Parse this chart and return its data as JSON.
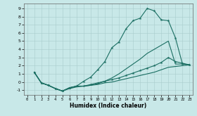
{
  "bg_color": "#c8e8e8",
  "grid_color": "#a8cccc",
  "line_color": "#1a6e62",
  "xlabel": "Humidex (Indice chaleur)",
  "xlim": [
    -0.5,
    23.5
  ],
  "ylim": [
    -1.6,
    9.6
  ],
  "xticks": [
    0,
    1,
    2,
    3,
    4,
    5,
    6,
    7,
    8,
    9,
    10,
    11,
    12,
    13,
    14,
    15,
    16,
    17,
    18,
    19,
    20,
    21,
    22,
    23
  ],
  "yticks": [
    -1,
    0,
    1,
    2,
    3,
    4,
    5,
    6,
    7,
    8,
    9
  ],
  "line1": {
    "x": [
      1,
      2,
      3,
      4,
      5,
      6,
      7,
      8,
      9,
      10,
      11,
      12,
      13,
      14,
      15,
      16,
      17,
      18,
      19,
      20,
      21,
      22,
      23
    ],
    "y": [
      1.2,
      -0.1,
      -0.4,
      -0.8,
      -1.1,
      -0.7,
      -0.5,
      0.1,
      0.6,
      1.5,
      2.5,
      4.2,
      4.9,
      6.5,
      7.5,
      7.8,
      9.0,
      8.7,
      7.6,
      7.5,
      5.4,
      2.2,
      2.1
    ],
    "has_markers": true
  },
  "line2": {
    "x": [
      1,
      2,
      3,
      4,
      5,
      6,
      7,
      8,
      9,
      10,
      11,
      12,
      13,
      14,
      15,
      16,
      17,
      18,
      19,
      20,
      21,
      22,
      23
    ],
    "y": [
      1.2,
      -0.1,
      -0.4,
      -0.8,
      -1.1,
      -0.8,
      -0.6,
      -0.5,
      -0.4,
      -0.2,
      0.1,
      0.5,
      1.0,
      1.6,
      2.2,
      2.8,
      3.5,
      4.0,
      4.5,
      5.0,
      2.2,
      2.2,
      2.1
    ],
    "has_markers": false
  },
  "line3": {
    "x": [
      1,
      2,
      3,
      4,
      5,
      6,
      7,
      8,
      9,
      10,
      11,
      12,
      13,
      14,
      15,
      16,
      17,
      18,
      19,
      20,
      21,
      22,
      23
    ],
    "y": [
      1.2,
      -0.1,
      -0.4,
      -0.8,
      -1.1,
      -0.7,
      -0.5,
      -0.5,
      -0.3,
      -0.1,
      0.1,
      0.3,
      0.5,
      0.8,
      1.1,
      1.4,
      1.7,
      2.0,
      2.4,
      3.0,
      2.5,
      2.3,
      2.1
    ],
    "has_markers": true
  },
  "line4": {
    "x": [
      1,
      2,
      3,
      4,
      5,
      6,
      7,
      8,
      9,
      10,
      11,
      12,
      13,
      14,
      15,
      16,
      17,
      18,
      19,
      20,
      21,
      22,
      23
    ],
    "y": [
      1.2,
      -0.1,
      -0.4,
      -0.8,
      -1.1,
      -0.7,
      -0.5,
      -0.5,
      -0.4,
      -0.3,
      -0.1,
      0.0,
      0.2,
      0.4,
      0.6,
      0.8,
      1.0,
      1.2,
      1.5,
      1.8,
      1.9,
      2.0,
      2.1
    ],
    "has_markers": false
  }
}
